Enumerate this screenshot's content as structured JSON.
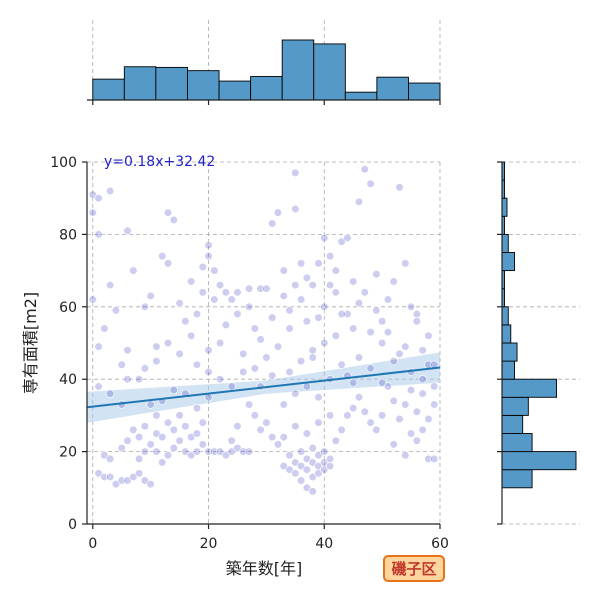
{
  "chart_data": {
    "type": "scatter",
    "title": "",
    "xlabel": "築年数[年]",
    "ylabel": "専有面積[m2]",
    "xlim": [
      -1,
      60
    ],
    "ylim": [
      0,
      100
    ],
    "xticks": [
      0,
      20,
      40,
      60
    ],
    "yticks": [
      0,
      20,
      40,
      60,
      80,
      100
    ],
    "grid": true,
    "annotation": "y=0.18x+32.42",
    "badge": "磯子区",
    "regression": {
      "slope": 0.18,
      "intercept": 32.42,
      "band": 3.0
    },
    "colors": {
      "points": "#4a4ac8",
      "line": "#1f77b4",
      "band": "#a6c8e8",
      "hist": "#5499c7",
      "badge_fill": "#ffd59e",
      "badge_border": "#e8731c"
    },
    "points": [
      [
        0,
        91
      ],
      [
        1,
        90
      ],
      [
        0,
        86
      ],
      [
        1,
        80
      ],
      [
        0,
        62
      ],
      [
        1,
        49
      ],
      [
        1,
        38
      ],
      [
        2,
        54
      ],
      [
        4,
        59
      ],
      [
        3,
        92
      ],
      [
        6,
        81
      ],
      [
        7,
        70
      ],
      [
        5,
        44
      ],
      [
        6,
        48
      ],
      [
        8,
        40
      ],
      [
        9,
        60
      ],
      [
        10,
        63
      ],
      [
        11,
        49
      ],
      [
        12,
        74
      ],
      [
        13,
        72
      ],
      [
        13,
        86
      ],
      [
        14,
        84
      ],
      [
        15,
        61
      ],
      [
        16,
        56
      ],
      [
        17,
        67
      ],
      [
        18,
        58
      ],
      [
        19,
        71
      ],
      [
        20,
        77
      ],
      [
        20,
        74
      ],
      [
        21,
        70
      ],
      [
        22,
        66
      ],
      [
        23,
        64
      ],
      [
        24,
        62
      ],
      [
        25,
        64
      ],
      [
        27,
        65
      ],
      [
        28,
        54
      ],
      [
        29,
        65
      ],
      [
        30,
        65
      ],
      [
        31,
        83
      ],
      [
        32,
        86
      ],
      [
        33,
        70
      ],
      [
        34,
        59
      ],
      [
        35,
        97
      ],
      [
        35,
        87
      ],
      [
        36,
        72
      ],
      [
        37,
        56
      ],
      [
        38,
        46
      ],
      [
        39,
        57
      ],
      [
        40,
        79
      ],
      [
        41,
        74
      ],
      [
        42,
        64
      ],
      [
        43,
        78
      ],
      [
        44,
        79
      ],
      [
        45,
        67
      ],
      [
        46,
        89
      ],
      [
        47,
        98
      ],
      [
        48,
        94
      ],
      [
        49,
        69
      ],
      [
        50,
        56
      ],
      [
        51,
        62
      ],
      [
        52,
        67
      ],
      [
        53,
        93
      ],
      [
        54,
        72
      ],
      [
        55,
        60
      ],
      [
        56,
        58
      ],
      [
        57,
        48
      ],
      [
        58,
        44
      ],
      [
        59,
        44
      ],
      [
        1,
        14
      ],
      [
        2,
        13
      ],
      [
        3,
        13
      ],
      [
        4,
        11
      ],
      [
        5,
        12
      ],
      [
        6,
        12
      ],
      [
        7,
        13
      ],
      [
        8,
        14
      ],
      [
        9,
        12
      ],
      [
        10,
        11
      ],
      [
        2,
        19
      ],
      [
        3,
        18
      ],
      [
        5,
        21
      ],
      [
        6,
        23
      ],
      [
        8,
        18
      ],
      [
        9,
        20
      ],
      [
        10,
        22
      ],
      [
        11,
        20
      ],
      [
        12,
        17
      ],
      [
        13,
        19
      ],
      [
        14,
        21
      ],
      [
        15,
        23
      ],
      [
        7,
        26
      ],
      [
        8,
        24
      ],
      [
        9,
        27
      ],
      [
        11,
        25
      ],
      [
        12,
        24
      ],
      [
        13,
        28
      ],
      [
        14,
        26
      ],
      [
        15,
        30
      ],
      [
        16,
        27
      ],
      [
        17,
        24
      ],
      [
        18,
        25
      ],
      [
        16,
        20
      ],
      [
        17,
        19
      ],
      [
        18,
        20
      ],
      [
        19,
        22
      ],
      [
        20,
        20
      ],
      [
        21,
        20
      ],
      [
        22,
        20
      ],
      [
        23,
        19
      ],
      [
        24,
        20
      ],
      [
        25,
        21
      ],
      [
        26,
        20
      ],
      [
        27,
        20
      ],
      [
        24,
        23
      ],
      [
        25,
        27
      ],
      [
        28,
        30
      ],
      [
        29,
        26
      ],
      [
        30,
        28
      ],
      [
        31,
        24
      ],
      [
        10,
        33
      ],
      [
        12,
        34
      ],
      [
        14,
        37
      ],
      [
        16,
        36
      ],
      [
        18,
        32
      ],
      [
        20,
        35
      ],
      [
        22,
        40
      ],
      [
        24,
        38
      ],
      [
        26,
        42
      ],
      [
        3,
        36
      ],
      [
        5,
        33
      ],
      [
        6,
        40
      ],
      [
        33,
        16
      ],
      [
        34,
        15
      ],
      [
        34,
        19
      ],
      [
        35,
        14
      ],
      [
        35,
        17
      ],
      [
        36,
        16
      ],
      [
        36,
        20
      ],
      [
        37,
        15
      ],
      [
        37,
        18
      ],
      [
        38,
        13
      ],
      [
        38,
        17
      ],
      [
        38,
        21
      ],
      [
        39,
        14
      ],
      [
        39,
        16
      ],
      [
        39,
        19
      ],
      [
        40,
        15
      ],
      [
        40,
        17
      ],
      [
        40,
        20
      ],
      [
        41,
        16
      ],
      [
        41,
        18
      ],
      [
        36,
        12
      ],
      [
        37,
        10
      ],
      [
        38,
        9
      ],
      [
        32,
        22
      ],
      [
        33,
        24
      ],
      [
        35,
        27
      ],
      [
        37,
        25
      ],
      [
        39,
        28
      ],
      [
        41,
        30
      ],
      [
        42,
        23
      ],
      [
        43,
        26
      ],
      [
        44,
        30
      ],
      [
        45,
        32
      ],
      [
        46,
        35
      ],
      [
        47,
        31
      ],
      [
        48,
        28
      ],
      [
        49,
        26
      ],
      [
        50,
        30
      ],
      [
        51,
        38
      ],
      [
        52,
        34
      ],
      [
        53,
        29
      ],
      [
        54,
        33
      ],
      [
        55,
        37
      ],
      [
        56,
        31
      ],
      [
        57,
        36
      ],
      [
        58,
        29
      ],
      [
        59,
        33
      ],
      [
        52,
        22
      ],
      [
        54,
        19
      ],
      [
        56,
        23
      ],
      [
        58,
        18
      ],
      [
        59,
        18
      ],
      [
        55,
        25
      ],
      [
        57,
        26
      ],
      [
        34,
        42
      ],
      [
        36,
        45
      ],
      [
        38,
        48
      ],
      [
        40,
        50
      ],
      [
        42,
        52
      ],
      [
        44,
        41
      ],
      [
        46,
        46
      ],
      [
        48,
        43
      ],
      [
        50,
        39
      ],
      [
        33,
        33
      ],
      [
        35,
        36
      ],
      [
        37,
        38
      ],
      [
        39,
        35
      ],
      [
        41,
        40
      ],
      [
        43,
        44
      ],
      [
        45,
        39
      ],
      [
        30,
        46
      ],
      [
        28,
        43
      ],
      [
        26,
        47
      ],
      [
        22,
        50
      ],
      [
        20,
        48
      ],
      [
        18,
        44
      ],
      [
        15,
        47
      ],
      [
        13,
        50
      ],
      [
        11,
        45
      ],
      [
        9,
        43
      ],
      [
        3,
        66
      ],
      [
        11,
        30
      ],
      [
        19,
        28
      ],
      [
        27,
        33
      ],
      [
        29,
        38
      ],
      [
        31,
        41
      ],
      [
        32,
        49
      ],
      [
        34,
        54
      ],
      [
        36,
        62
      ],
      [
        38,
        66
      ],
      [
        40,
        60
      ],
      [
        42,
        70
      ],
      [
        44,
        58
      ],
      [
        46,
        61
      ],
      [
        48,
        53
      ],
      [
        50,
        50
      ],
      [
        52,
        45
      ],
      [
        54,
        49
      ],
      [
        56,
        56
      ],
      [
        58,
        52
      ],
      [
        20,
        42
      ],
      [
        23,
        55
      ],
      [
        25,
        58
      ],
      [
        21,
        62
      ],
      [
        17,
        52
      ],
      [
        19,
        64
      ],
      [
        29,
        51
      ],
      [
        31,
        57
      ],
      [
        33,
        63
      ],
      [
        35,
        66
      ],
      [
        37,
        68
      ],
      [
        39,
        72
      ],
      [
        41,
        66
      ],
      [
        43,
        58
      ],
      [
        45,
        54
      ],
      [
        47,
        64
      ],
      [
        49,
        59
      ],
      [
        51,
        53
      ],
      [
        53,
        47
      ],
      [
        55,
        42
      ],
      [
        57,
        40
      ],
      [
        59,
        38
      ],
      [
        27,
        60
      ]
    ],
    "top_hist": {
      "bins": [
        0,
        5.45,
        10.9,
        16.36,
        21.82,
        27.27,
        32.73,
        38.18,
        43.64,
        49.09,
        54.55,
        60
      ],
      "counts": [
        32,
        51,
        50,
        45,
        29,
        36,
        92,
        86,
        12,
        35,
        26
      ]
    },
    "right_hist": {
      "bins": [
        10,
        15,
        20,
        25,
        30,
        35,
        40,
        45,
        50,
        55,
        60,
        65,
        70,
        75,
        80,
        85,
        90,
        95,
        100
      ],
      "counts": [
        48,
        118,
        48,
        33,
        42,
        87,
        20,
        24,
        14,
        10,
        4,
        4,
        20,
        10,
        4,
        8,
        4,
        4
      ]
    }
  }
}
